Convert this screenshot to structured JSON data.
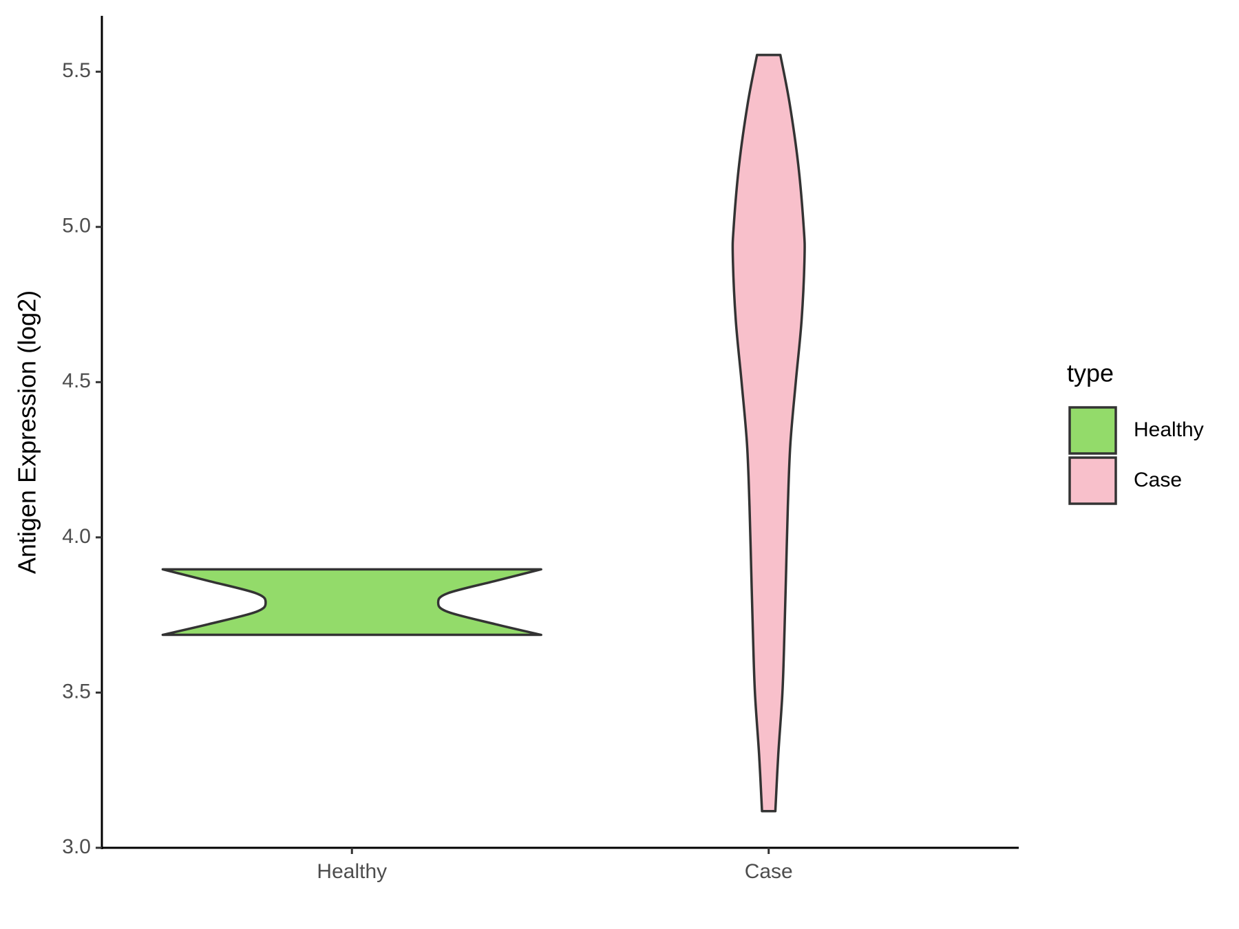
{
  "chart_data": {
    "type": "violin",
    "y_label": "Antigen Expression (log2)",
    "categories": [
      "Healthy",
      "Case"
    ],
    "xlim": [
      0.4,
      2.6
    ],
    "ylim": [
      3.0,
      5.68
    ],
    "yticks": [
      {
        "value": 3,
        "label": "3.0"
      },
      3.5,
      {
        "value": 4,
        "label": "4.0"
      },
      4.5,
      {
        "value": 5,
        "label": "5.0"
      },
      5.5
    ],
    "legend_title": "type",
    "legend_position": "right",
    "series": [
      {
        "name": "Healthy",
        "color": "#93db6a",
        "y": [
          3.686,
          3.72,
          3.76,
          3.79,
          3.82,
          3.86,
          3.897
        ],
        "width": [
          0.454,
          0.345,
          0.23,
          0.207,
          0.23,
          0.345,
          0.454
        ]
      },
      {
        "name": "Case",
        "color": "#f8c0cb",
        "y": [
          3.118,
          3.3,
          3.5,
          3.7,
          3.9,
          4.1,
          4.3,
          4.5,
          4.7,
          4.9,
          5.0,
          5.2,
          5.4,
          5.554
        ],
        "width": [
          0.016,
          0.023,
          0.033,
          0.038,
          0.042,
          0.046,
          0.052,
          0.065,
          0.079,
          0.086,
          0.084,
          0.071,
          0.05,
          0.028
        ]
      }
    ]
  }
}
